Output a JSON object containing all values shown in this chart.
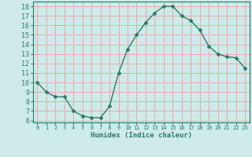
{
  "x": [
    0,
    1,
    2,
    3,
    4,
    5,
    6,
    7,
    8,
    9,
    10,
    11,
    12,
    13,
    14,
    15,
    16,
    17,
    18,
    19,
    20,
    21,
    22,
    23
  ],
  "y": [
    10,
    9,
    8.5,
    8.5,
    7,
    6.5,
    6.3,
    6.3,
    7.5,
    11,
    13.5,
    15,
    16.3,
    17.3,
    18,
    18,
    17,
    16.5,
    15.5,
    13.8,
    13,
    12.7,
    12.6,
    11.5
  ],
  "xlim": [
    -0.5,
    23.5
  ],
  "ylim": [
    5.8,
    18.5
  ],
  "yticks": [
    6,
    7,
    8,
    9,
    10,
    11,
    12,
    13,
    14,
    15,
    16,
    17,
    18
  ],
  "xticks": [
    0,
    1,
    2,
    3,
    4,
    5,
    6,
    7,
    8,
    9,
    10,
    11,
    12,
    13,
    14,
    15,
    16,
    17,
    18,
    19,
    20,
    21,
    22,
    23
  ],
  "xlabel": "Humidex (Indice chaleur)",
  "line_color": "#2d7a6a",
  "marker": "D",
  "marker_size": 2.0,
  "bg_color": "#ceeaea",
  "grid_color": "#e8aaaa",
  "line_width": 1.0
}
